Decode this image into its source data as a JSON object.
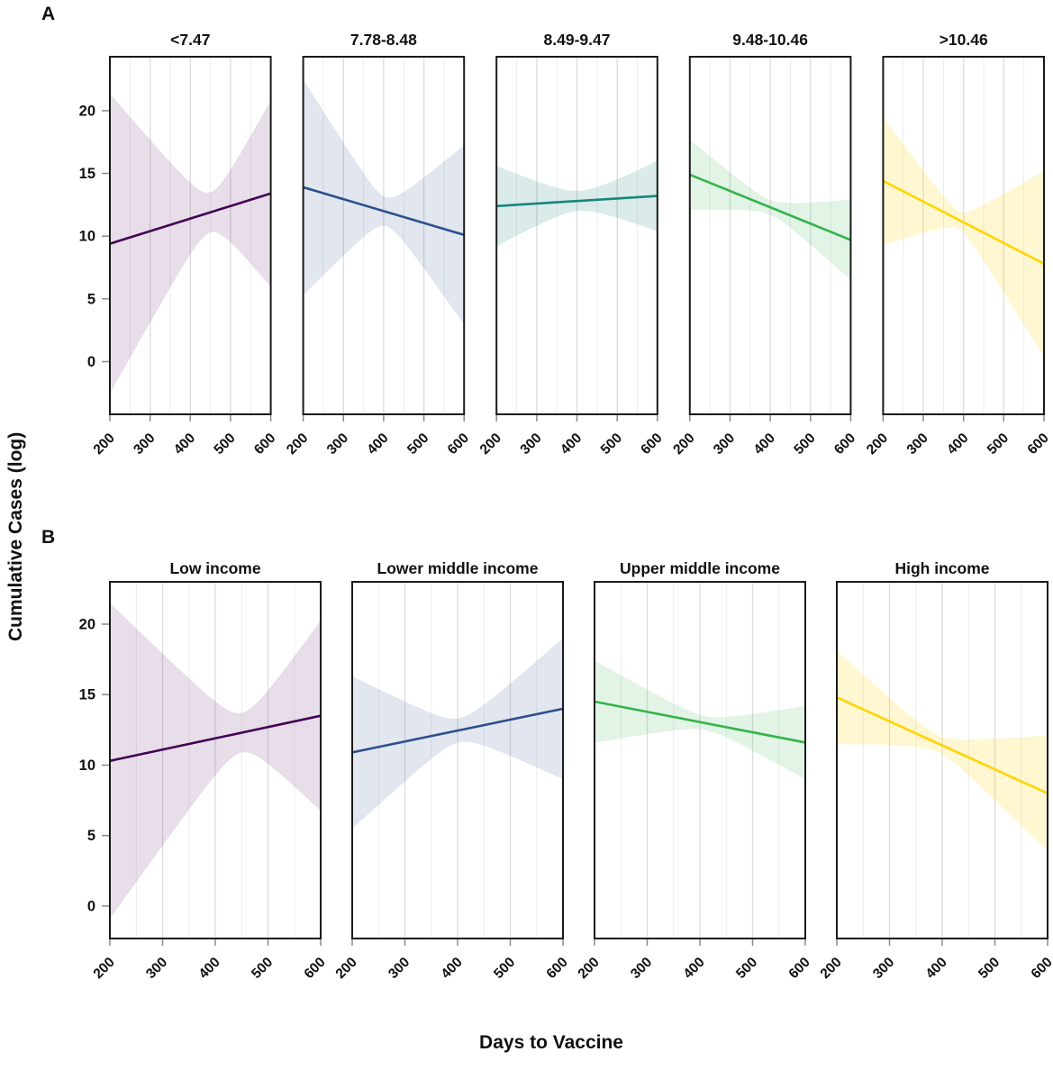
{
  "figure": {
    "panel_a_label": "A",
    "panel_b_label": "B",
    "y_axis_label": "Cumulative Cases (log)",
    "x_axis_label": "Days to Vaccine",
    "background_color": "#ffffff",
    "panel_border_color": "#1a1a1a",
    "grid_major_color": "#dcdcdc",
    "grid_minor_color": "#ededed",
    "tick_mark_color": "#8a8a8a",
    "text_color": "#111111"
  },
  "chart_data": [
    {
      "id": "A",
      "type": "line",
      "figure_label": "A",
      "description": "Linear fit with confidence band per facet",
      "xlabel": "Days to Vaccine",
      "ylabel": "Cumulative Cases (log)",
      "x_range": [
        200,
        600
      ],
      "y_range_display": [
        -4.2,
        24.3
      ],
      "x_ticks": [
        200,
        300,
        400,
        500,
        600
      ],
      "y_ticks": [
        0,
        5,
        10,
        15,
        20
      ],
      "x_tick_rotation_deg": 45,
      "grid": {
        "major_x": [
          300,
          400,
          500
        ],
        "minor_x": [
          250,
          350,
          450,
          550
        ]
      },
      "panels": [
        {
          "title": "<7.47",
          "line_color": "#440154",
          "band_color": "rgba(68,1,84,0.13)",
          "line": {
            "x": [
              200,
              600
            ],
            "y": [
              9.4,
              13.4
            ]
          },
          "ci_band": {
            "at_200": [
              -2.5,
              21.4
            ],
            "waist_x": 450,
            "at_waist": [
              10.4,
              13.6
            ],
            "at_600": [
              5.9,
              20.8
            ]
          }
        },
        {
          "title": "7.78-8.48",
          "line_color": "#2b4f8e",
          "band_color": "rgba(43,79,142,0.14)",
          "line": {
            "x": [
              200,
              600
            ],
            "y": [
              13.9,
              10.1
            ]
          },
          "ci_band": {
            "at_200": [
              5.3,
              22.5
            ],
            "waist_x": 405,
            "at_waist": [
              10.8,
              13.1
            ],
            "at_600": [
              3.0,
              17.3
            ]
          }
        },
        {
          "title": "8.49-9.47",
          "line_color": "#17857d",
          "band_color": "rgba(23,133,125,0.16)",
          "line": {
            "x": [
              200,
              600
            ],
            "y": [
              12.4,
              13.2
            ]
          },
          "ci_band": {
            "at_200": [
              9.1,
              15.5
            ],
            "waist_x": 405,
            "at_waist": [
              12.0,
              13.6
            ],
            "at_600": [
              10.3,
              15.9
            ]
          }
        },
        {
          "title": "9.48-10.46",
          "line_color": "#33b44a",
          "band_color": "rgba(51,180,74,0.14)",
          "line": {
            "x": [
              200,
              600
            ],
            "y": [
              14.9,
              9.7
            ]
          },
          "ci_band": {
            "at_200": [
              12.1,
              17.7
            ],
            "waist_x": 400,
            "at_waist": [
              11.7,
              12.9
            ],
            "at_600": [
              6.5,
              12.9
            ]
          }
        },
        {
          "title": ">10.46",
          "line_color": "#ffd400",
          "band_color": "rgba(255,212,0,0.18)",
          "line": {
            "x": [
              200,
              600
            ],
            "y": [
              14.4,
              7.8
            ]
          },
          "ci_band": {
            "at_200": [
              9.3,
              19.5
            ],
            "waist_x": 390,
            "at_waist": [
              10.6,
              12.0
            ],
            "at_600": [
              0.4,
              15.2
            ]
          }
        }
      ]
    },
    {
      "id": "B",
      "type": "line",
      "figure_label": "B",
      "description": "Linear fit with confidence band per income group",
      "xlabel": "Days to Vaccine",
      "ylabel": "Cumulative Cases (log)",
      "x_range": [
        200,
        600
      ],
      "y_range_display": [
        -2.3,
        23.0
      ],
      "x_ticks": [
        200,
        300,
        400,
        500,
        600
      ],
      "y_ticks": [
        0,
        5,
        10,
        15,
        20
      ],
      "x_tick_rotation_deg": 45,
      "grid": {
        "major_x": [
          300,
          400,
          500
        ],
        "minor_x": [
          250,
          350,
          450,
          550
        ]
      },
      "panels": [
        {
          "title": "Low income",
          "line_color": "#440154",
          "band_color": "rgba(68,1,84,0.13)",
          "line": {
            "x": [
              200,
              600
            ],
            "y": [
              10.3,
              13.5
            ]
          },
          "ci_band": {
            "at_200": [
              -0.9,
              21.5
            ],
            "waist_x": 450,
            "at_waist": [
              10.9,
              13.7
            ],
            "at_600": [
              6.8,
              20.3
            ]
          }
        },
        {
          "title": "Lower middle income",
          "line_color": "#2b4f8e",
          "band_color": "rgba(43,79,142,0.14)",
          "line": {
            "x": [
              200,
              600
            ],
            "y": [
              10.9,
              14.0
            ]
          },
          "ci_band": {
            "at_200": [
              5.5,
              16.3
            ],
            "waist_x": 403,
            "at_waist": [
              11.6,
              13.3
            ],
            "at_600": [
              9.0,
              19.0
            ]
          }
        },
        {
          "title": "Upper middle income",
          "line_color": "#33b44a",
          "band_color": "rgba(51,180,74,0.14)",
          "line": {
            "x": [
              200,
              600
            ],
            "y": [
              14.5,
              11.6
            ]
          },
          "ci_band": {
            "at_200": [
              11.6,
              17.4
            ],
            "waist_x": 411,
            "at_waist": [
              12.5,
              13.5
            ],
            "at_600": [
              9.0,
              14.2
            ]
          }
        },
        {
          "title": "High income",
          "line_color": "#ffd400",
          "band_color": "rgba(255,212,0,0.18)",
          "line": {
            "x": [
              200,
              600
            ],
            "y": [
              14.8,
              8.0
            ]
          },
          "ci_band": {
            "at_200": [
              11.5,
              18.1
            ],
            "waist_x": 393,
            "at_waist": [
              10.9,
              12.1
            ],
            "at_600": [
              3.9,
              12.1
            ]
          }
        }
      ]
    }
  ]
}
